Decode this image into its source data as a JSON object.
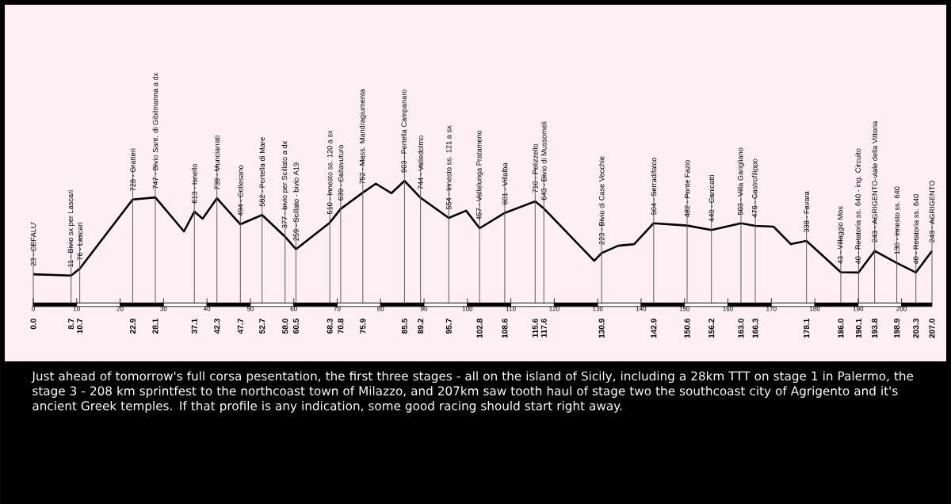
{
  "chart_data": {
    "type": "line",
    "color": "#000000",
    "marker": "none",
    "line_style": "solid",
    "tick_labels": "x",
    "x": [
      0.0,
      8.7,
      10.7,
      22.9,
      28.1,
      34.7,
      37.1,
      39.0,
      42.3,
      47.7,
      52.7,
      58.0,
      60.5,
      68.3,
      70.8,
      75.9,
      78.9,
      82.5,
      85.5,
      89.2,
      95.7,
      99.7,
      102.8,
      108.6,
      115.6,
      117.6,
      129.2,
      130.9,
      134.7,
      138.4,
      142.9,
      150.6,
      156.2,
      163.0,
      166.3,
      170.5,
      174.5,
      178.1,
      186.0,
      190.1,
      193.8,
      198.9,
      203.3,
      207.0
    ],
    "values": [
      23,
      11,
      76,
      728,
      747,
      427,
      613,
      547,
      739,
      494,
      582,
      377,
      259,
      510,
      639,
      792,
      877,
      787,
      903,
      744,
      554,
      622,
      457,
      601,
      710,
      643,
      150,
      223,
      292,
      307,
      504,
      482,
      440,
      503,
      479,
      472,
      307,
      338,
      43,
      40,
      243,
      130,
      40,
      243
    ],
    "value_labels": [
      "23 - CEFALU'",
      "11 - Bivio sx per Lascari",
      "76 - Lascari",
      "728 - Gratteri",
      "747 - Bivio Sant. di Gibilmanna a dx",
      null,
      "613 - Isnello",
      null,
      "739 - Munciarrati",
      "494 - Collesano",
      "582 - Portella di Mare",
      "377 - bivio per Scillato a dx",
      "259 - Scillato - bivio A19",
      "510 - Innesto ss. 120 a sx",
      "639 - Caltavuturo",
      "792 - Mass. Mandragiumenta",
      null,
      null,
      "903 - Portella Campanaro",
      "744 - Valledolmo",
      "554 - Innesto ss. 121 a sx",
      null,
      "457 - Vallelunga Pratameno",
      "601 - Villalba",
      "710 - Polizzello",
      "643 - Bivio di Mussomeli",
      null,
      "223 - Bivio di Case Vecchie",
      null,
      null,
      "504 - Serradifalco",
      "482 - Ponte Fazio",
      "440 - Canicatti",
      "503 - Villa Garigliano",
      "479 - Castrofilippo",
      null,
      null,
      "338 - Favara",
      "43 - Villaggio Mos",
      "40 - Rotatoria ss. 640 - ing. Circuito",
      "243 - AGRIGENTO-viale della Vittoria",
      "130 - innesto ss. 640",
      "40 - Rotatoria ss. 640",
      "243 - AGRIGENTO"
    ],
    "xlim": [
      0,
      207
    ],
    "xticks": [
      {
        "value": 0.0,
        "label": "0.0"
      },
      {
        "value": 8.7,
        "label": "8.7"
      },
      {
        "value": 10.7,
        "label": "10.7"
      },
      {
        "value": 22.9,
        "label": "22.9"
      },
      {
        "value": 28.1,
        "label": "28.1"
      },
      {
        "value": 37.1,
        "label": "37.1"
      },
      {
        "value": 42.3,
        "label": "42.3"
      },
      {
        "value": 47.7,
        "label": "47.7"
      },
      {
        "value": 52.7,
        "label": "52.7"
      },
      {
        "value": 58.0,
        "label": "58.0"
      },
      {
        "value": 60.5,
        "label": "60.5"
      },
      {
        "value": 68.3,
        "label": "68.3"
      },
      {
        "value": 70.8,
        "label": "70.8"
      },
      {
        "value": 75.9,
        "label": "75.9"
      },
      {
        "value": 85.5,
        "label": "85.5"
      },
      {
        "value": 89.2,
        "label": "89.2"
      },
      {
        "value": 95.7,
        "label": "95.7"
      },
      {
        "value": 102.8,
        "label": "102.8"
      },
      {
        "value": 108.6,
        "label": "108.6"
      },
      {
        "value": 115.6,
        "label": "115.6"
      },
      {
        "value": 117.6,
        "label": "117.6"
      },
      {
        "value": 130.9,
        "label": "130.9"
      },
      {
        "value": 142.9,
        "label": "142.9"
      },
      {
        "value": 150.6,
        "label": "150.6"
      },
      {
        "value": 156.2,
        "label": "156.2"
      },
      {
        "value": 163.0,
        "label": "163.0"
      },
      {
        "value": 166.3,
        "label": "166.3"
      },
      {
        "value": 178.1,
        "label": "178.1"
      },
      {
        "value": 186.0,
        "label": "186.0"
      },
      {
        "value": 190.1,
        "label": "190.1"
      },
      {
        "value": 193.8,
        "label": "193.8"
      },
      {
        "value": 198.9,
        "label": "198.9"
      },
      {
        "value": 203.3,
        "label": "203.3"
      },
      {
        "value": 207.0,
        "label": "207.0"
      }
    ],
    "x2lim": [
      0,
      207
    ],
    "grid": "x",
    "x2ticks": [
      0,
      10,
      20,
      30,
      40,
      50,
      60,
      70,
      80,
      90,
      100,
      110,
      120,
      130,
      140,
      150,
      160,
      170,
      180,
      190,
      200
    ],
    "annotations": [
      "Just ahead of tomorrow's full corsa pesentation, the first three stages - all on the island of Sicily, including a 28km TTT on stage 1 in Palermo, the stage 3 - 208 km sprintfest to the northcoast town of Milazzo, and 207km saw tooth haul of stage two the southcoast city of Agrigento and it's ancient Greek temples.  If that profile is any indication, some good racing should start right away."
    ]
  }
}
